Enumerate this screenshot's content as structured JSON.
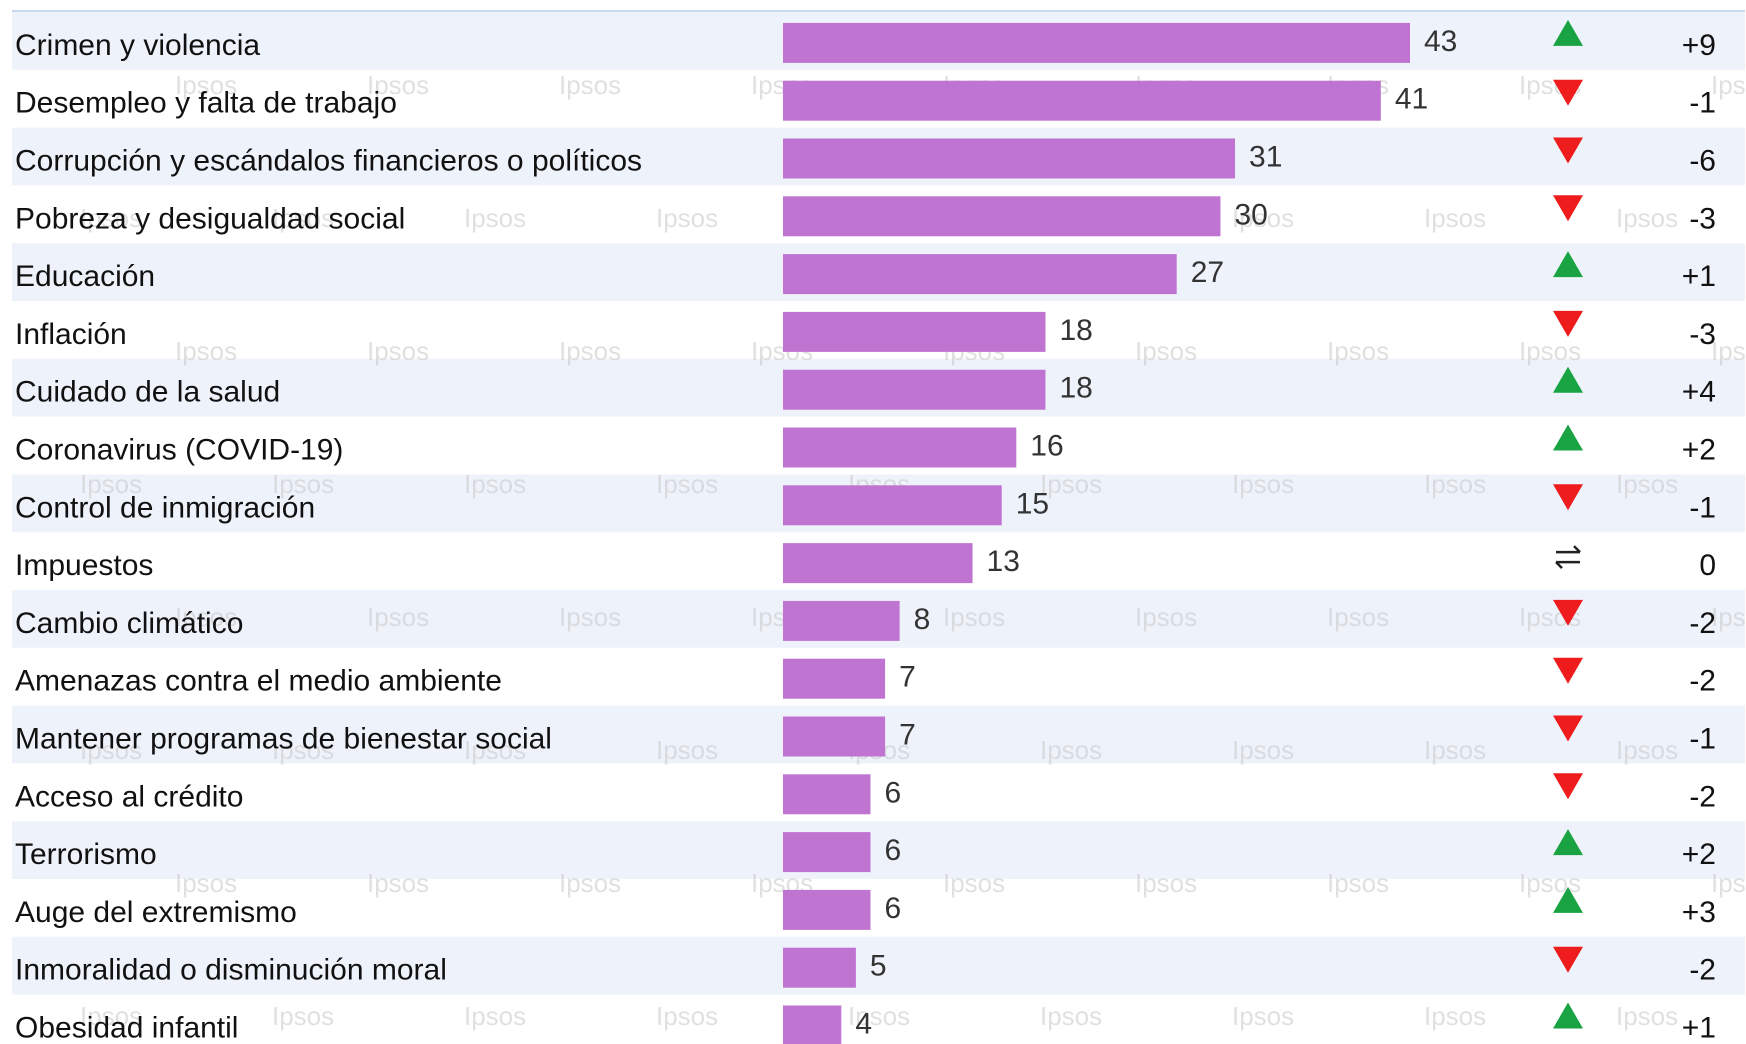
{
  "colors": {
    "bar": "#bf74d1",
    "band": "#eef3fb",
    "up": "#1aa342",
    "down": "#ee1c1c",
    "top_border": "#c9d9ee"
  },
  "watermark": "Ipsos",
  "chart_data": {
    "type": "bar",
    "orientation": "horizontal",
    "xlim": [
      0,
      43
    ],
    "categories": [
      "Crimen y violencia",
      "Desempleo y falta de trabajo",
      "Corrupción y escándalos financieros o políticos",
      "Pobreza y desigualdad social",
      "Educación",
      "Inflación",
      "Cuidado de la salud",
      "Coronavirus (COVID-19)",
      "Control de inmigración",
      "Impuestos",
      "Cambio climático",
      "Amenazas contra el medio ambiente",
      "Mantener programas de bienestar social",
      "Acceso al crédito",
      "Terrorismo",
      "Auge del extremismo",
      "Inmoralidad o disminución moral",
      "Obesidad infantil"
    ],
    "values": [
      43,
      41,
      31,
      30,
      27,
      18,
      18,
      16,
      15,
      13,
      8,
      7,
      7,
      6,
      6,
      6,
      5,
      4
    ],
    "value_labels": [
      "43",
      "41",
      "31",
      "30",
      "27",
      "18",
      "18",
      "16",
      "15",
      "13",
      "8",
      "7",
      "7",
      "6",
      "6",
      "6",
      "5",
      "4"
    ],
    "changes": [
      "+9",
      "-1",
      "-6",
      "-3",
      "+1",
      "-3",
      "+4",
      "+2",
      "-1",
      "0",
      "-2",
      "-2",
      "-1",
      "-2",
      "+2",
      "+3",
      "-2",
      "+1"
    ],
    "trend_icons": [
      "up-triangle",
      "down-triangle",
      "down-triangle",
      "down-triangle",
      "up-triangle",
      "down-triangle",
      "up-triangle",
      "up-triangle",
      "down-triangle",
      "swap-arrows",
      "down-triangle",
      "down-triangle",
      "down-triangle",
      "down-triangle",
      "up-triangle",
      "up-triangle",
      "down-triangle",
      "up-triangle"
    ],
    "grid": false
  }
}
